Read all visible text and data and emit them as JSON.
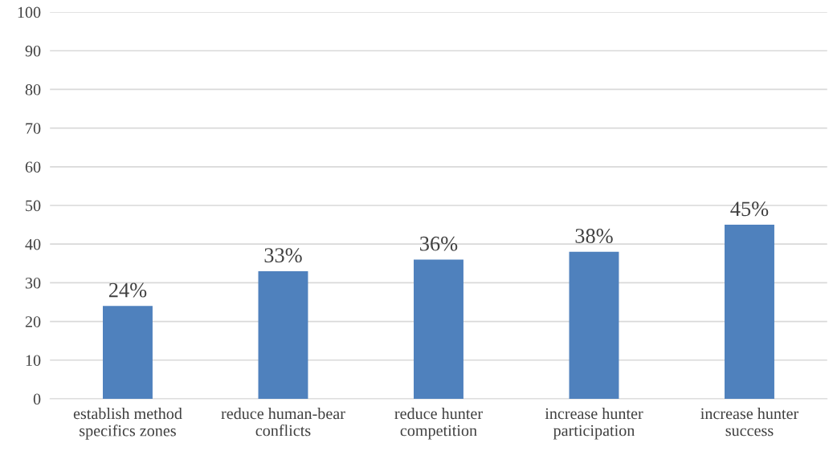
{
  "chart_data": {
    "type": "bar",
    "categories": [
      "establish method\nspecifics zones",
      "reduce human-bear\nconflicts",
      "reduce hunter\ncompetition",
      "increase hunter\nparticipation",
      "increase hunter\nsuccess"
    ],
    "values": [
      24,
      33,
      36,
      38,
      45
    ],
    "value_labels": [
      "24%",
      "33%",
      "36%",
      "38%",
      "45%"
    ],
    "color": "#4f81bd",
    "ylim": [
      0,
      100
    ],
    "yticks": [
      0,
      10,
      20,
      30,
      40,
      50,
      60,
      70,
      80,
      90,
      100
    ],
    "grid": "y",
    "legend": false
  }
}
